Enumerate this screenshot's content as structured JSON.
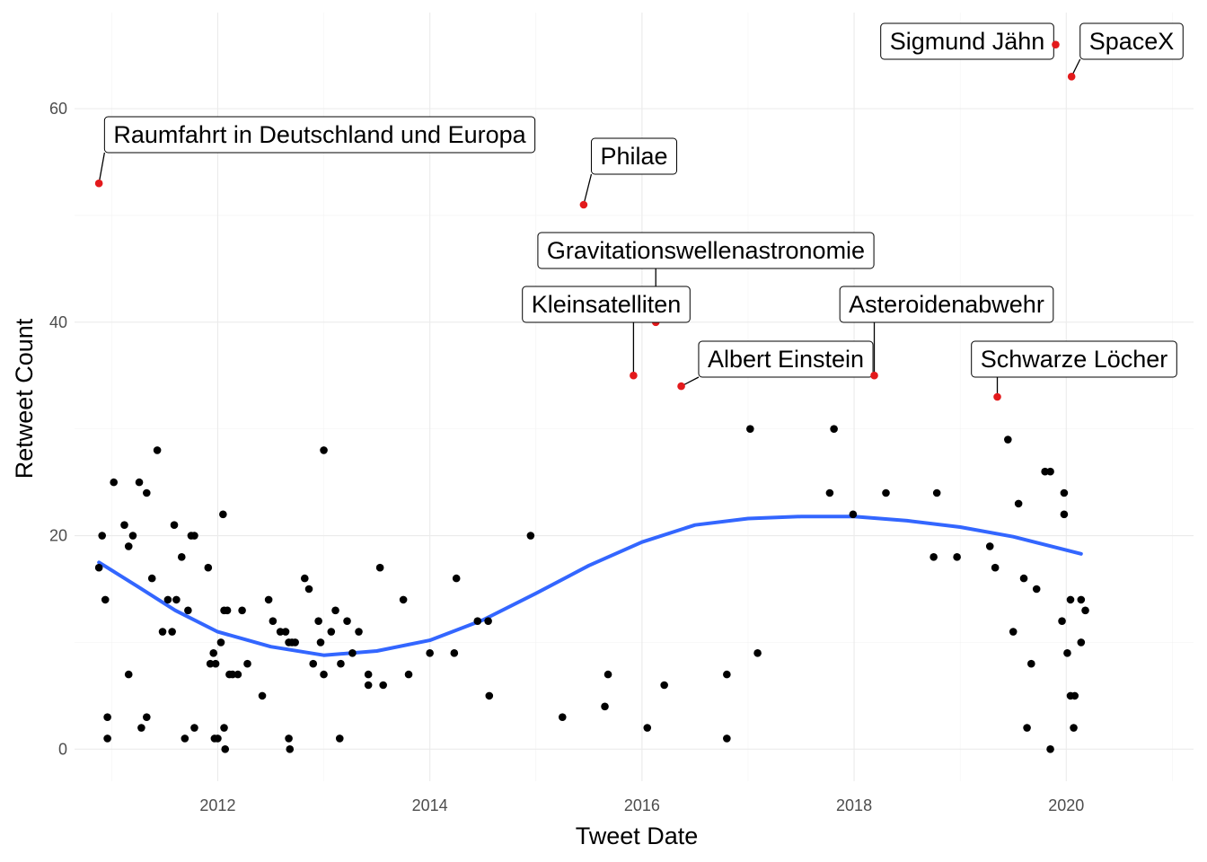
{
  "chart_data": {
    "type": "scatter",
    "xlabel": "Tweet Date",
    "ylabel": "Retweet Count",
    "xlim": [
      2010.65,
      2021.2
    ],
    "ylim": [
      -3,
      69
    ],
    "x_ticks": [
      2012,
      2014,
      2016,
      2018,
      2020
    ],
    "x_tick_labels": [
      "2012",
      "2014",
      "2016",
      "2018",
      "2020"
    ],
    "y_ticks": [
      0,
      20,
      40,
      60
    ],
    "y_tick_labels": [
      "0",
      "20",
      "40",
      "60"
    ],
    "grid": true,
    "colors": {
      "points": "#000000",
      "highlight": "#e31a1c",
      "smooth": "#3366ff"
    },
    "points": [
      {
        "x": 2010.88,
        "y": 17
      },
      {
        "x": 2010.91,
        "y": 20
      },
      {
        "x": 2010.94,
        "y": 14
      },
      {
        "x": 2010.96,
        "y": 1
      },
      {
        "x": 2010.96,
        "y": 3
      },
      {
        "x": 2011.02,
        "y": 25
      },
      {
        "x": 2011.12,
        "y": 21
      },
      {
        "x": 2011.16,
        "y": 19
      },
      {
        "x": 2011.16,
        "y": 7
      },
      {
        "x": 2011.2,
        "y": 20
      },
      {
        "x": 2011.26,
        "y": 25
      },
      {
        "x": 2011.28,
        "y": 2
      },
      {
        "x": 2011.33,
        "y": 24
      },
      {
        "x": 2011.33,
        "y": 3
      },
      {
        "x": 2011.38,
        "y": 16
      },
      {
        "x": 2011.43,
        "y": 28
      },
      {
        "x": 2011.48,
        "y": 11
      },
      {
        "x": 2011.53,
        "y": 14
      },
      {
        "x": 2011.57,
        "y": 11
      },
      {
        "x": 2011.59,
        "y": 21
      },
      {
        "x": 2011.61,
        "y": 14
      },
      {
        "x": 2011.66,
        "y": 18
      },
      {
        "x": 2011.69,
        "y": 1
      },
      {
        "x": 2011.72,
        "y": 13
      },
      {
        "x": 2011.75,
        "y": 20
      },
      {
        "x": 2011.78,
        "y": 20
      },
      {
        "x": 2011.78,
        "y": 2
      },
      {
        "x": 2011.91,
        "y": 17
      },
      {
        "x": 2011.93,
        "y": 8
      },
      {
        "x": 2011.96,
        "y": 9
      },
      {
        "x": 2011.97,
        "y": 1
      },
      {
        "x": 2011.98,
        "y": 8
      },
      {
        "x": 2012.0,
        "y": 1
      },
      {
        "x": 2012.03,
        "y": 10
      },
      {
        "x": 2012.05,
        "y": 22
      },
      {
        "x": 2012.06,
        "y": 13
      },
      {
        "x": 2012.06,
        "y": 2
      },
      {
        "x": 2012.07,
        "y": 0
      },
      {
        "x": 2012.09,
        "y": 13
      },
      {
        "x": 2012.11,
        "y": 7
      },
      {
        "x": 2012.14,
        "y": 7
      },
      {
        "x": 2012.19,
        "y": 7
      },
      {
        "x": 2012.23,
        "y": 13
      },
      {
        "x": 2012.28,
        "y": 8
      },
      {
        "x": 2012.42,
        "y": 5
      },
      {
        "x": 2012.48,
        "y": 14
      },
      {
        "x": 2012.52,
        "y": 12
      },
      {
        "x": 2012.59,
        "y": 11
      },
      {
        "x": 2012.64,
        "y": 11
      },
      {
        "x": 2012.67,
        "y": 10
      },
      {
        "x": 2012.67,
        "y": 1
      },
      {
        "x": 2012.68,
        "y": 0
      },
      {
        "x": 2012.7,
        "y": 10
      },
      {
        "x": 2012.73,
        "y": 10
      },
      {
        "x": 2012.82,
        "y": 16
      },
      {
        "x": 2012.86,
        "y": 15
      },
      {
        "x": 2012.9,
        "y": 8
      },
      {
        "x": 2012.95,
        "y": 12
      },
      {
        "x": 2012.97,
        "y": 10
      },
      {
        "x": 2013.0,
        "y": 28
      },
      {
        "x": 2013.0,
        "y": 7
      },
      {
        "x": 2013.07,
        "y": 11
      },
      {
        "x": 2013.11,
        "y": 13
      },
      {
        "x": 2013.15,
        "y": 1
      },
      {
        "x": 2013.16,
        "y": 8
      },
      {
        "x": 2013.22,
        "y": 12
      },
      {
        "x": 2013.27,
        "y": 9
      },
      {
        "x": 2013.33,
        "y": 11
      },
      {
        "x": 2013.42,
        "y": 7
      },
      {
        "x": 2013.42,
        "y": 6
      },
      {
        "x": 2013.53,
        "y": 17
      },
      {
        "x": 2013.56,
        "y": 6
      },
      {
        "x": 2013.75,
        "y": 14
      },
      {
        "x": 2013.8,
        "y": 7
      },
      {
        "x": 2014.0,
        "y": 9
      },
      {
        "x": 2014.23,
        "y": 9
      },
      {
        "x": 2014.25,
        "y": 16
      },
      {
        "x": 2014.45,
        "y": 12
      },
      {
        "x": 2014.55,
        "y": 12
      },
      {
        "x": 2014.56,
        "y": 5
      },
      {
        "x": 2014.95,
        "y": 20
      },
      {
        "x": 2015.25,
        "y": 3
      },
      {
        "x": 2015.65,
        "y": 4
      },
      {
        "x": 2015.68,
        "y": 7
      },
      {
        "x": 2016.05,
        "y": 2
      },
      {
        "x": 2016.21,
        "y": 6
      },
      {
        "x": 2016.8,
        "y": 1
      },
      {
        "x": 2016.8,
        "y": 7
      },
      {
        "x": 2017.02,
        "y": 30
      },
      {
        "x": 2017.09,
        "y": 9
      },
      {
        "x": 2017.77,
        "y": 24
      },
      {
        "x": 2017.81,
        "y": 30
      },
      {
        "x": 2017.99,
        "y": 22
      },
      {
        "x": 2018.3,
        "y": 24
      },
      {
        "x": 2018.78,
        "y": 24
      },
      {
        "x": 2018.75,
        "y": 18
      },
      {
        "x": 2018.97,
        "y": 18
      },
      {
        "x": 2019.28,
        "y": 19
      },
      {
        "x": 2019.33,
        "y": 17
      },
      {
        "x": 2019.6,
        "y": 16
      },
      {
        "x": 2019.67,
        "y": 8
      },
      {
        "x": 2019.5,
        "y": 11
      },
      {
        "x": 2019.85,
        "y": 26
      },
      {
        "x": 2020.08,
        "y": 5
      },
      {
        "x": 2020.18,
        "y": 13
      },
      {
        "x": 2019.45,
        "y": 29
      },
      {
        "x": 2019.55,
        "y": 23
      },
      {
        "x": 2019.63,
        "y": 2
      },
      {
        "x": 2019.72,
        "y": 15
      },
      {
        "x": 2019.8,
        "y": 26
      },
      {
        "x": 2019.85,
        "y": 0
      },
      {
        "x": 2019.98,
        "y": 24
      },
      {
        "x": 2019.96,
        "y": 12
      },
      {
        "x": 2020.01,
        "y": 9
      },
      {
        "x": 2020.04,
        "y": 14
      },
      {
        "x": 2019.98,
        "y": 22
      },
      {
        "x": 2020.04,
        "y": 5
      },
      {
        "x": 2020.07,
        "y": 2
      },
      {
        "x": 2020.14,
        "y": 14
      },
      {
        "x": 2020.14,
        "y": 10
      }
    ],
    "highlighted": [
      {
        "label": "Raumfahrt in Deutschland und Europa",
        "x": 2010.88,
        "y": 53
      },
      {
        "label": "Philae",
        "x": 2015.45,
        "y": 51
      },
      {
        "label": "Gravitationswellenastronomie",
        "x": 2016.13,
        "y": 40
      },
      {
        "label": "Kleinsatelliten",
        "x": 2015.92,
        "y": 35
      },
      {
        "label": "Albert Einstein",
        "x": 2016.37,
        "y": 34
      },
      {
        "label": "Asteroidenabwehr",
        "x": 2018.19,
        "y": 35
      },
      {
        "label": "Schwarze Löcher",
        "x": 2019.35,
        "y": 33
      },
      {
        "label": "Sigmund Jähn",
        "x": 2019.9,
        "y": 66
      },
      {
        "label": "SpaceX",
        "x": 2020.05,
        "y": 63
      }
    ],
    "smooth": {
      "method": "loess",
      "x": [
        2010.88,
        2011.25,
        2011.6,
        2012.0,
        2012.5,
        2013.0,
        2013.5,
        2014.0,
        2014.5,
        2015.0,
        2015.5,
        2016.0,
        2016.5,
        2017.0,
        2017.5,
        2018.0,
        2018.5,
        2019.0,
        2019.5,
        2020.14
      ],
      "y": [
        17.5,
        15.2,
        13.0,
        11.0,
        9.6,
        8.8,
        9.2,
        10.2,
        12.1,
        14.6,
        17.2,
        19.4,
        21.0,
        21.6,
        21.8,
        21.8,
        21.4,
        20.8,
        19.9,
        18.3
      ]
    }
  }
}
